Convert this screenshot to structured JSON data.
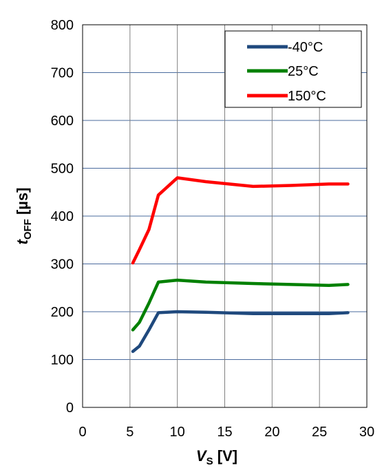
{
  "chart_data": {
    "type": "line",
    "title": "",
    "xlabel": {
      "main": "V",
      "sub": "S",
      "unit": " [V]"
    },
    "ylabel": {
      "main": "t",
      "sub": "OFF",
      "unit": " [µs]"
    },
    "xlim": [
      0,
      30
    ],
    "ylim": [
      0,
      800
    ],
    "xticks": [
      0,
      5,
      10,
      15,
      20,
      25,
      30
    ],
    "yticks": [
      0,
      100,
      200,
      300,
      400,
      500,
      600,
      700,
      800
    ],
    "grid": true,
    "legend_position": "top-right",
    "series": [
      {
        "name": "-40°C",
        "color": "#1f497d",
        "x": [
          5.3,
          6,
          7,
          8,
          10,
          13,
          18,
          22,
          26,
          28
        ],
        "y": [
          117,
          128,
          162,
          198,
          200,
          199,
          196,
          196,
          196,
          198
        ]
      },
      {
        "name": "25°C",
        "color": "#008000",
        "x": [
          5.3,
          6,
          7,
          8,
          10,
          13,
          18,
          22,
          26,
          28
        ],
        "y": [
          162,
          178,
          218,
          262,
          266,
          262,
          259,
          257,
          255,
          257
        ]
      },
      {
        "name": "150°C",
        "color": "#ff0000",
        "x": [
          5.3,
          6,
          7,
          8,
          10,
          13,
          18,
          22,
          26,
          28
        ],
        "y": [
          302,
          330,
          372,
          444,
          480,
          472,
          462,
          464,
          467,
          467
        ]
      }
    ]
  }
}
